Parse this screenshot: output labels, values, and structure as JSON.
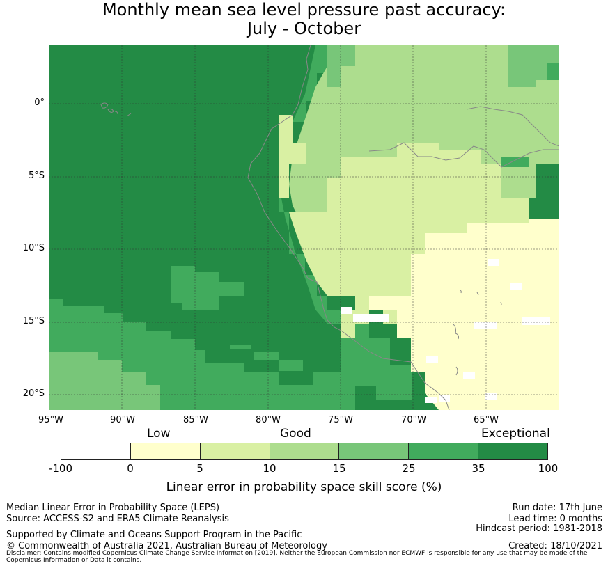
{
  "title": {
    "line1": "Monthly mean sea level pressure past accuracy:",
    "line2": "July - October"
  },
  "map": {
    "y_ticks": [
      "0°",
      "5°S",
      "10°S",
      "15°S",
      "20°S"
    ],
    "x_ticks": [
      "95°W",
      "90°W",
      "85°W",
      "80°W",
      "75°W",
      "70°W",
      "65°W"
    ],
    "region_colors": {
      "exceptional": "#238b45",
      "very_good": "#41ab5d",
      "good_high": "#78c679",
      "good": "#addd8e",
      "good_low": "#d9f0a3",
      "low": "#ffffcc",
      "none": "#ffffff"
    },
    "coastline_color": "#888888"
  },
  "colorbar": {
    "categories": [
      "Low",
      "Good",
      "Exceptional"
    ],
    "ticks": [
      "-100",
      "0",
      "5",
      "10",
      "15",
      "25",
      "35",
      "100"
    ],
    "colors": [
      "#ffffff",
      "#ffffcc",
      "#d9f0a3",
      "#addd8e",
      "#78c679",
      "#41ab5d",
      "#238b45"
    ],
    "label": "Linear error in probability space skill score (%)"
  },
  "footer": {
    "left1": "Median Linear Error in Probability Space (LEPS)",
    "left2": "Source: ACCESS-S2 and ERA5 Climate Reanalysis",
    "left3": "Supported by Climate and Oceans Support Program in the Pacific",
    "left4": "© Commonwealth of Australia 2021, Australian Bureau of Meteorology",
    "right1": "Run date: 17th June",
    "right2": "Lead time: 0 months",
    "right3": "Hindcast period: 1981-2018",
    "right4": "Created: 18/10/2021",
    "disclaimer": "Disclaimer: Contains modified Copernicus Climate Change Service Information [2019]. Neither the European Commission nor ECMWF is responsible for any use that may be made of the Copernicus Information or Data it contains."
  }
}
